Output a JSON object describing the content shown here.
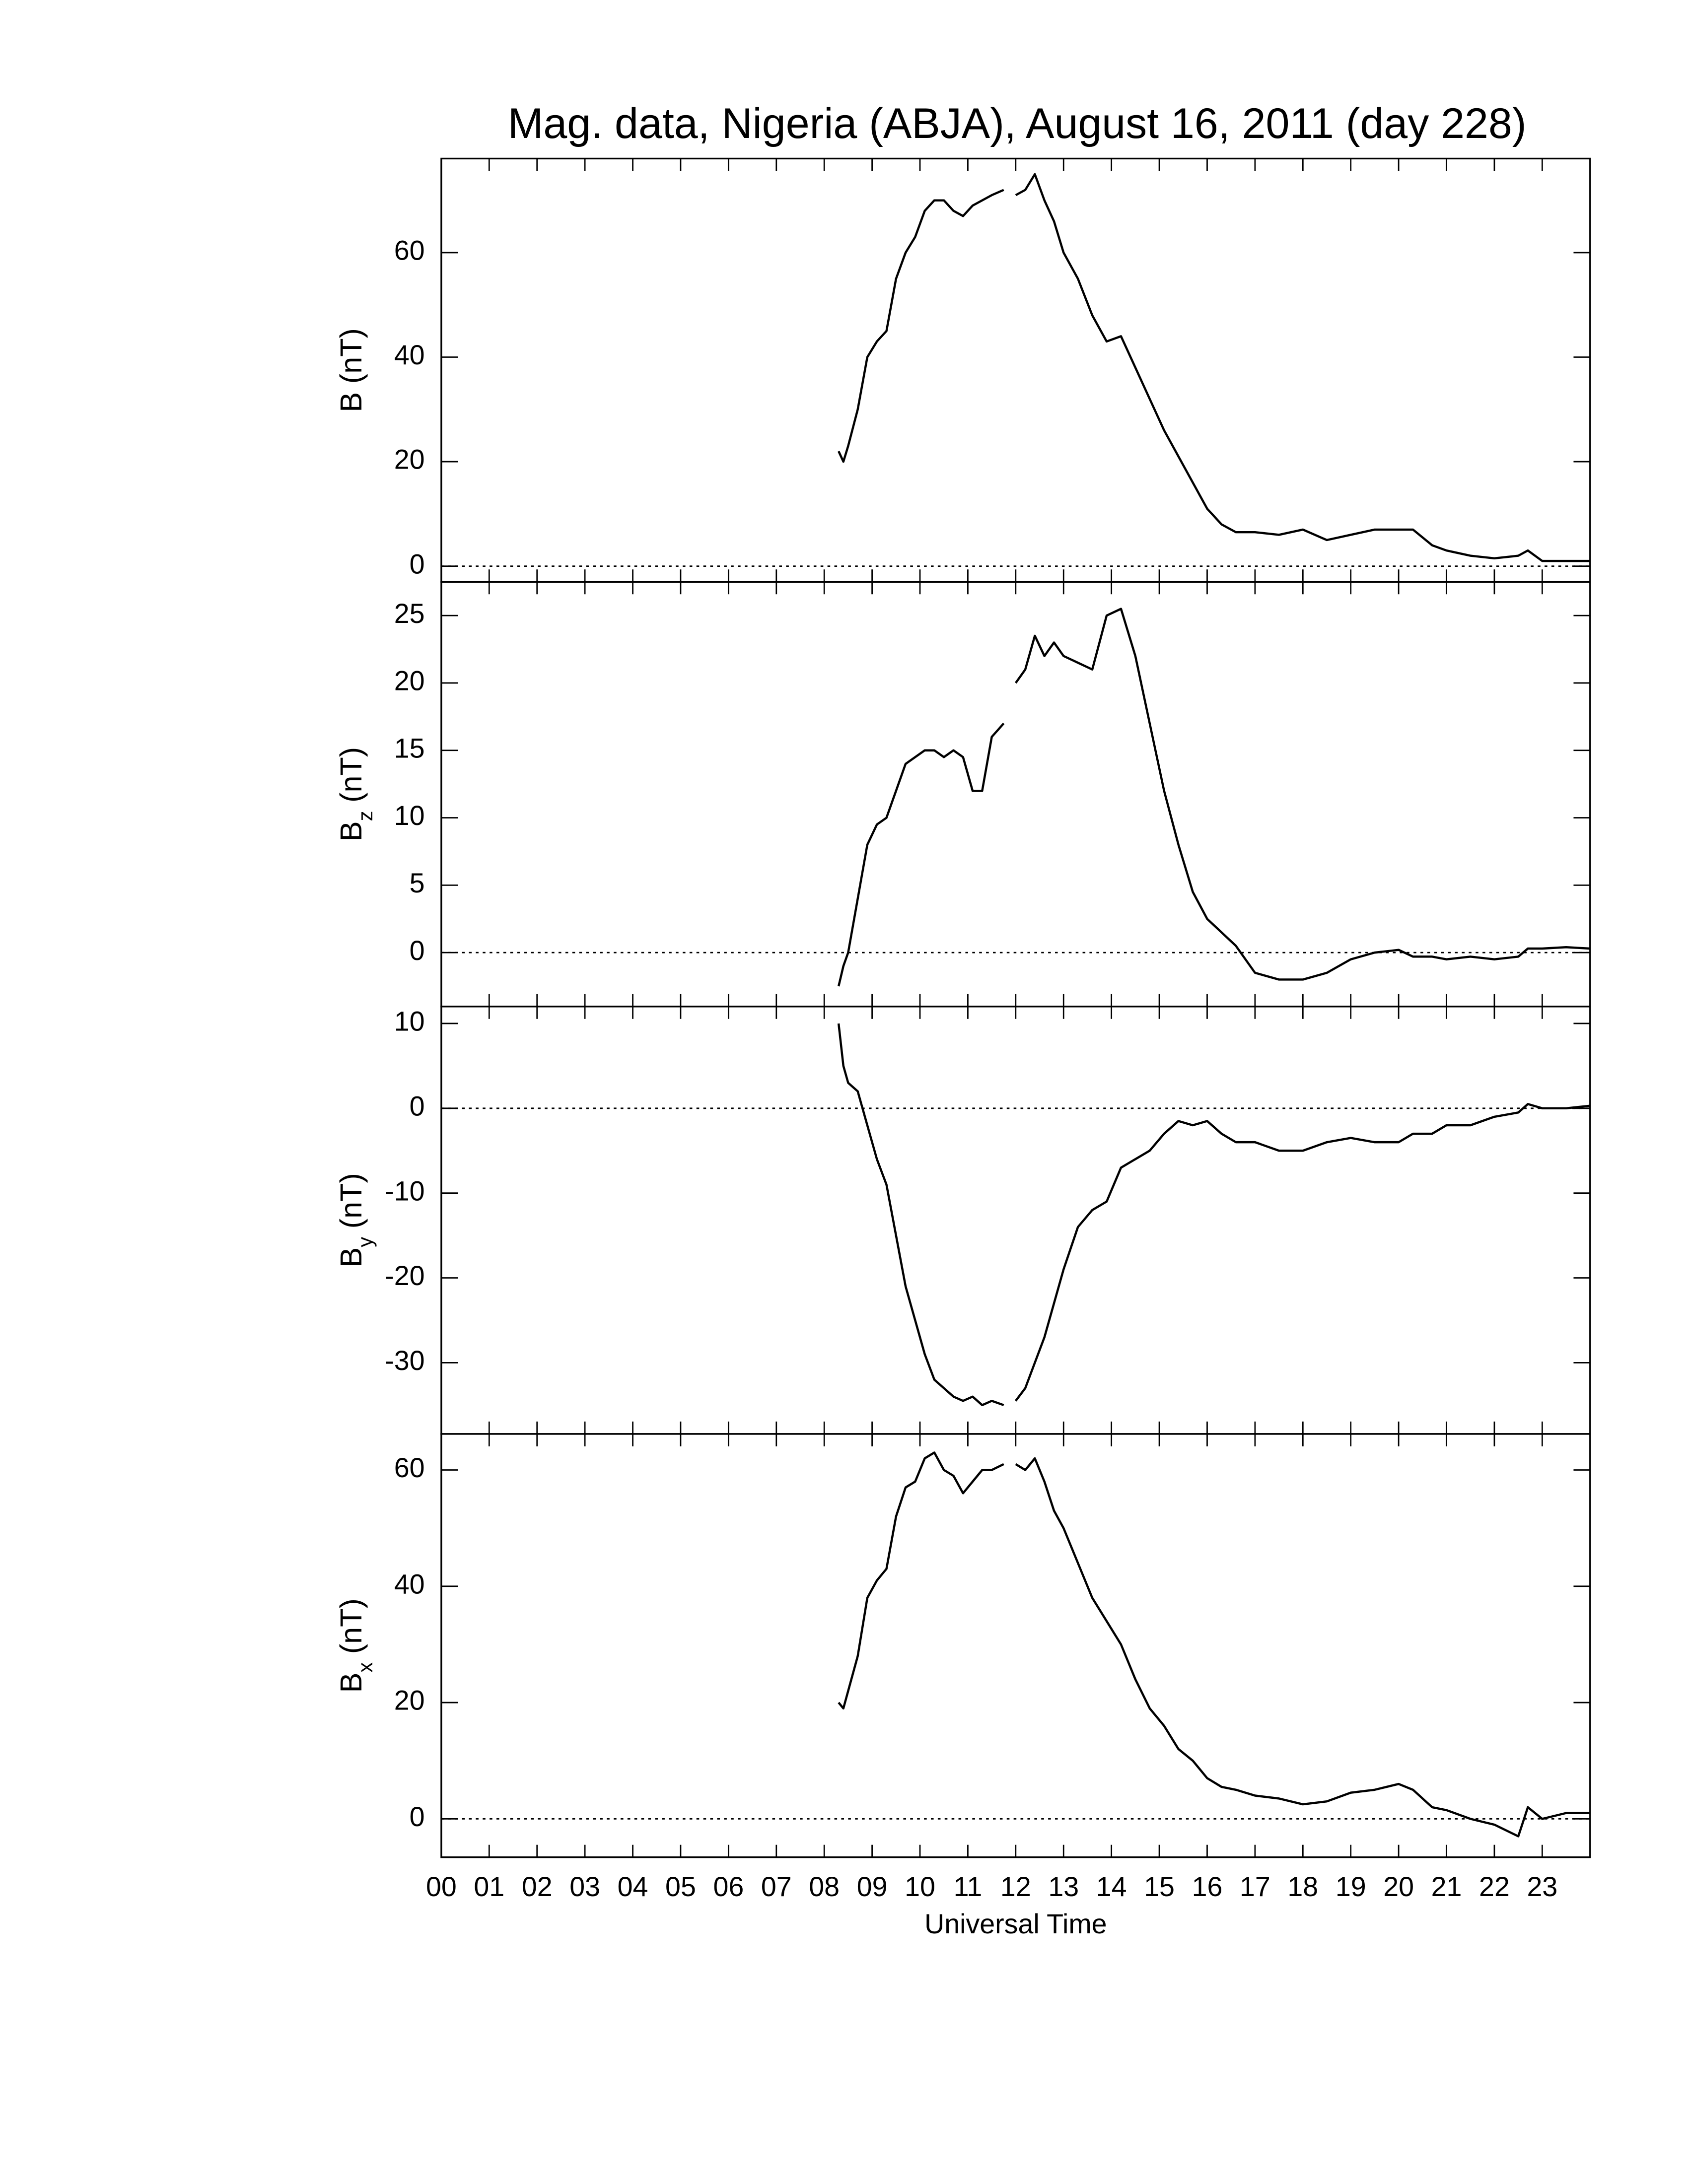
{
  "chart_data": [
    {
      "type": "line",
      "title": "Mag. data, Nigeria (ABJA), August 16, 2011 (day 228)",
      "ylabel": "B",
      "ylabel_units": "(nT)",
      "color": "#000000",
      "x": [
        8.3,
        8.4,
        8.5,
        8.7,
        8.9,
        9.1,
        9.3,
        9.5,
        9.7,
        9.9,
        10.1,
        10.3,
        10.5,
        10.7,
        10.9,
        11.1,
        11.3,
        11.5,
        11.75,
        11.9,
        12.0,
        12.2,
        12.4,
        12.6,
        12.8,
        13.0,
        13.3,
        13.6,
        13.9,
        14.2,
        14.5,
        14.8,
        15.1,
        15.4,
        15.7,
        16.0,
        16.3,
        16.6,
        17.0,
        17.5,
        18.0,
        18.5,
        19.0,
        19.5,
        20.0,
        20.3,
        20.7,
        21.0,
        21.5,
        22.0,
        22.5,
        22.7,
        23.0,
        23.5,
        24.0
      ],
      "values": [
        22,
        20,
        23,
        30,
        40,
        43,
        45,
        55,
        60,
        63,
        68,
        70,
        70,
        68,
        67,
        69,
        70,
        71,
        72,
        null,
        71,
        72,
        75,
        70,
        66,
        60,
        55,
        48,
        43,
        44,
        38,
        32,
        26,
        21,
        16,
        11,
        8,
        6.5,
        6.5,
        6,
        7,
        5,
        6,
        7,
        7,
        7,
        4,
        3,
        2,
        1.5,
        2,
        3,
        1,
        1,
        1
      ],
      "xlim": [
        0,
        24
      ],
      "ylim": [
        -3,
        78
      ],
      "yticks": [
        0,
        20,
        40,
        60
      ],
      "reference_line": 0
    },
    {
      "type": "line",
      "ylabel": "B",
      "ylabel_subscript": "z",
      "ylabel_units": "(nT)",
      "color": "#000000",
      "x": [
        8.3,
        8.4,
        8.5,
        8.7,
        8.9,
        9.1,
        9.3,
        9.5,
        9.7,
        9.9,
        10.1,
        10.3,
        10.5,
        10.7,
        10.9,
        11.1,
        11.3,
        11.5,
        11.75,
        11.9,
        12.0,
        12.2,
        12.4,
        12.6,
        12.8,
        13.0,
        13.3,
        13.6,
        13.9,
        14.2,
        14.5,
        14.8,
        15.1,
        15.4,
        15.7,
        16.0,
        16.3,
        16.6,
        17.0,
        17.5,
        18.0,
        18.5,
        19.0,
        19.5,
        20.0,
        20.3,
        20.7,
        21.0,
        21.5,
        22.0,
        22.5,
        22.7,
        23.0,
        23.5,
        24.0
      ],
      "values": [
        -2.5,
        -1,
        0,
        4,
        8,
        9.5,
        10,
        12,
        14,
        14.5,
        15,
        15,
        14.5,
        15,
        14.5,
        12,
        12,
        16,
        17,
        null,
        20,
        21,
        23.5,
        22,
        23,
        22,
        21.5,
        21,
        25,
        25.5,
        22,
        17,
        12,
        8,
        4.5,
        2.5,
        1.5,
        0.5,
        -1.5,
        -2,
        -2,
        -1.5,
        -0.5,
        0,
        0.2,
        -0.3,
        -0.3,
        -0.5,
        -0.3,
        -0.5,
        -0.3,
        0.3,
        0.3,
        0.4,
        0.3
      ],
      "xlim": [
        0,
        24
      ],
      "ylim": [
        -4,
        27.5
      ],
      "yticks": [
        0,
        5,
        10,
        15,
        20,
        25
      ],
      "reference_line": 0
    },
    {
      "type": "line",
      "ylabel": "B",
      "ylabel_subscript": "y",
      "ylabel_units": "(nT)",
      "color": "#000000",
      "x": [
        8.3,
        8.4,
        8.5,
        8.7,
        8.9,
        9.1,
        9.3,
        9.5,
        9.7,
        9.9,
        10.1,
        10.3,
        10.5,
        10.7,
        10.9,
        11.1,
        11.3,
        11.5,
        11.75,
        11.9,
        12.0,
        12.2,
        12.4,
        12.6,
        12.8,
        13.0,
        13.3,
        13.6,
        13.9,
        14.2,
        14.5,
        14.8,
        15.1,
        15.4,
        15.7,
        16.0,
        16.3,
        16.6,
        17.0,
        17.5,
        18.0,
        18.5,
        19.0,
        19.5,
        20.0,
        20.3,
        20.7,
        21.0,
        21.5,
        22.0,
        22.5,
        22.7,
        23.0,
        23.5,
        24.0
      ],
      "values": [
        10,
        5,
        3,
        2,
        -2,
        -6,
        -9,
        -15,
        -21,
        -25,
        -29,
        -32,
        -33,
        -34,
        -34.5,
        -34,
        -35,
        -34.5,
        -35,
        null,
        -34.5,
        -33,
        -30,
        -27,
        -23,
        -19,
        -14,
        -12,
        -11,
        -7,
        -6,
        -5,
        -3,
        -1.5,
        -2,
        -1.5,
        -3,
        -4,
        -4,
        -5,
        -5,
        -4,
        -3.5,
        -4,
        -4,
        -3,
        -3,
        -2,
        -2,
        -1,
        -0.5,
        0.5,
        0,
        0,
        0.3
      ],
      "xlim": [
        0,
        24
      ],
      "ylim": [
        -38.4,
        12
      ],
      "yticks": [
        -30,
        -20,
        -10,
        0,
        10
      ],
      "reference_line": 0
    },
    {
      "type": "line",
      "ylabel": "B",
      "ylabel_subscript": "x",
      "ylabel_units": "(nT)",
      "xlabel": "Universal Time",
      "color": "#000000",
      "x": [
        8.3,
        8.4,
        8.5,
        8.7,
        8.9,
        9.1,
        9.3,
        9.5,
        9.7,
        9.9,
        10.1,
        10.3,
        10.5,
        10.7,
        10.9,
        11.1,
        11.3,
        11.5,
        11.75,
        11.9,
        12.0,
        12.2,
        12.4,
        12.6,
        12.8,
        13.0,
        13.3,
        13.6,
        13.9,
        14.2,
        14.5,
        14.8,
        15.1,
        15.4,
        15.7,
        16.0,
        16.3,
        16.6,
        17.0,
        17.5,
        18.0,
        18.5,
        19.0,
        19.5,
        20.0,
        20.3,
        20.7,
        21.0,
        21.5,
        22.0,
        22.5,
        22.7,
        23.0,
        23.5,
        24.0
      ],
      "values": [
        20,
        19,
        22,
        28,
        38,
        41,
        43,
        52,
        57,
        58,
        62,
        63,
        60,
        59,
        56,
        58,
        60,
        60,
        61,
        null,
        61,
        60,
        62,
        58,
        53,
        50,
        44,
        38,
        34,
        30,
        24,
        19,
        16,
        12,
        10,
        7,
        5.5,
        5,
        4,
        3.5,
        2.5,
        3,
        4.5,
        5,
        6,
        5,
        2,
        1.5,
        0,
        -1,
        -3,
        2,
        0,
        1,
        1
      ],
      "xlim": [
        0,
        24
      ],
      "ylim": [
        -6.6,
        66.2
      ],
      "yticks": [
        0,
        20,
        40,
        60
      ],
      "reference_line": 0,
      "xticks": [
        {
          "value": 0,
          "label": "00"
        },
        {
          "value": 1,
          "label": "01"
        },
        {
          "value": 2,
          "label": "02"
        },
        {
          "value": 3,
          "label": "03"
        },
        {
          "value": 4,
          "label": "04"
        },
        {
          "value": 5,
          "label": "05"
        },
        {
          "value": 6,
          "label": "06"
        },
        {
          "value": 7,
          "label": "07"
        },
        {
          "value": 8,
          "label": "08"
        },
        {
          "value": 9,
          "label": "09"
        },
        {
          "value": 10,
          "label": "10"
        },
        {
          "value": 11,
          "label": "11"
        },
        {
          "value": 12,
          "label": "12"
        },
        {
          "value": 13,
          "label": "13"
        },
        {
          "value": 14,
          "label": "14"
        },
        {
          "value": 15,
          "label": "15"
        },
        {
          "value": 16,
          "label": "16"
        },
        {
          "value": 17,
          "label": "17"
        },
        {
          "value": 18,
          "label": "18"
        },
        {
          "value": 19,
          "label": "19"
        },
        {
          "value": 20,
          "label": "20"
        },
        {
          "value": 21,
          "label": "21"
        },
        {
          "value": 22,
          "label": "22"
        },
        {
          "value": 23,
          "label": "23"
        }
      ]
    }
  ]
}
